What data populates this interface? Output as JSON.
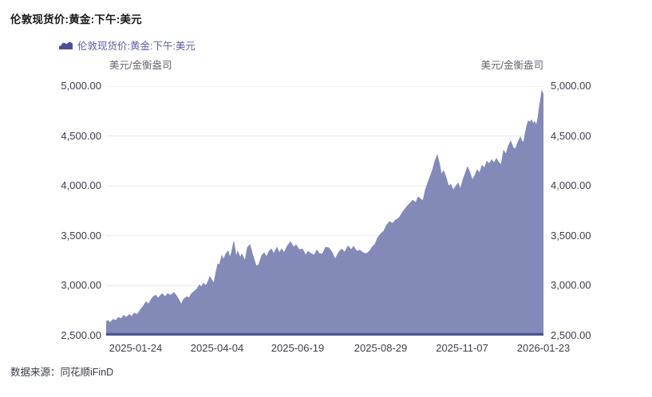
{
  "title": "伦敦现货价:黄金:下午:美元",
  "legend": {
    "label": "伦敦现货价:黄金:下午:美元"
  },
  "unit_left": "美元/金衡盎司",
  "unit_right": "美元/金衡盎司",
  "footer": {
    "source_label": "数据来源：同花顺iFinD"
  },
  "colors": {
    "area_fill": "#838ab8",
    "baseline": "#4d5591",
    "grid": "#e7e7ef",
    "legend_swatch": "#4a4f92",
    "legend_text": "#5b60a6",
    "tick_text": "#3d3d4d",
    "unit_text": "#66666f",
    "title_text": "#1a1a1a",
    "footer_text": "#383849"
  },
  "chart_data": {
    "type": "area",
    "title": "伦敦现货价:黄金:下午:美元",
    "ylabel": "美元/金衡盎司",
    "ylim": [
      2500,
      5000
    ],
    "grid": "horizontal",
    "legend_position": "top-left",
    "yticks": [
      {
        "value": 5000,
        "label": "5,000.00"
      },
      {
        "value": 4500,
        "label": "4,500.00"
      },
      {
        "value": 4000,
        "label": "4,000.00"
      },
      {
        "value": 3500,
        "label": "3,500.00"
      },
      {
        "value": 3000,
        "label": "3,000.00"
      },
      {
        "value": 2500,
        "label": "2,500.00"
      }
    ],
    "t_max": 548,
    "xticks": [
      {
        "t": 37,
        "label": "2025-01-24"
      },
      {
        "t": 139,
        "label": "2025-04-04"
      },
      {
        "t": 240,
        "label": "2025-06-19"
      },
      {
        "t": 344,
        "label": "2025-08-29"
      },
      {
        "t": 446,
        "label": "2025-11-07"
      },
      {
        "t": 548,
        "label": "2026-01-23"
      }
    ],
    "points": [
      [
        0,
        2640
      ],
      [
        2,
        2652
      ],
      [
        5,
        2630
      ],
      [
        9,
        2664
      ],
      [
        12,
        2650
      ],
      [
        15,
        2682
      ],
      [
        19,
        2670
      ],
      [
        22,
        2704
      ],
      [
        25,
        2682
      ],
      [
        29,
        2712
      ],
      [
        32,
        2690
      ],
      [
        35,
        2726
      ],
      [
        39,
        2712
      ],
      [
        42,
        2748
      ],
      [
        45,
        2780
      ],
      [
        47,
        2800
      ],
      [
        50,
        2840
      ],
      [
        53,
        2814
      ],
      [
        56,
        2858
      ],
      [
        59,
        2890
      ],
      [
        62,
        2905
      ],
      [
        65,
        2876
      ],
      [
        68,
        2902
      ],
      [
        70,
        2920
      ],
      [
        74,
        2890
      ],
      [
        77,
        2920
      ],
      [
        81,
        2904
      ],
      [
        85,
        2932
      ],
      [
        89,
        2888
      ],
      [
        92,
        2848
      ],
      [
        94,
        2812
      ],
      [
        97,
        2864
      ],
      [
        101,
        2890
      ],
      [
        104,
        2878
      ],
      [
        107,
        2920
      ],
      [
        111,
        2948
      ],
      [
        114,
        2970
      ],
      [
        117,
        3010
      ],
      [
        119,
        2985
      ],
      [
        122,
        3025
      ],
      [
        125,
        3000
      ],
      [
        128,
        3048
      ],
      [
        130,
        3090
      ],
      [
        132,
        3062
      ],
      [
        135,
        3025
      ],
      [
        138,
        3150
      ],
      [
        140,
        3220
      ],
      [
        142,
        3208
      ],
      [
        145,
        3300
      ],
      [
        147,
        3262
      ],
      [
        150,
        3320
      ],
      [
        153,
        3348
      ],
      [
        155,
        3282
      ],
      [
        157,
        3330
      ],
      [
        160,
        3445
      ],
      [
        163,
        3292
      ],
      [
        165,
        3344
      ],
      [
        168,
        3282
      ],
      [
        170,
        3318
      ],
      [
        174,
        3250
      ],
      [
        177,
        3382
      ],
      [
        180,
        3412
      ],
      [
        184,
        3302
      ],
      [
        188,
        3200
      ],
      [
        191,
        3208
      ],
      [
        195,
        3302
      ],
      [
        198,
        3330
      ],
      [
        201,
        3290
      ],
      [
        204,
        3344
      ],
      [
        207,
        3368
      ],
      [
        210,
        3320
      ],
      [
        214,
        3384
      ],
      [
        217,
        3330
      ],
      [
        220,
        3368
      ],
      [
        223,
        3330
      ],
      [
        227,
        3398
      ],
      [
        231,
        3440
      ],
      [
        235,
        3386
      ],
      [
        238,
        3408
      ],
      [
        242,
        3360
      ],
      [
        246,
        3368
      ],
      [
        250,
        3305
      ],
      [
        253,
        3344
      ],
      [
        257,
        3320
      ],
      [
        261,
        3306
      ],
      [
        264,
        3358
      ],
      [
        267,
        3322
      ],
      [
        271,
        3318
      ],
      [
        275,
        3384
      ],
      [
        279,
        3380
      ],
      [
        283,
        3336
      ],
      [
        287,
        3266
      ],
      [
        291,
        3330
      ],
      [
        295,
        3368
      ],
      [
        299,
        3336
      ],
      [
        303,
        3398
      ],
      [
        307,
        3360
      ],
      [
        310,
        3394
      ],
      [
        314,
        3346
      ],
      [
        318,
        3356
      ],
      [
        322,
        3330
      ],
      [
        326,
        3320
      ],
      [
        330,
        3346
      ],
      [
        333,
        3384
      ],
      [
        337,
        3416
      ],
      [
        340,
        3478
      ],
      [
        344,
        3520
      ],
      [
        348,
        3548
      ],
      [
        351,
        3600
      ],
      [
        355,
        3642
      ],
      [
        359,
        3626
      ],
      [
        363,
        3660
      ],
      [
        367,
        3680
      ],
      [
        372,
        3742
      ],
      [
        376,
        3786
      ],
      [
        380,
        3820
      ],
      [
        384,
        3856
      ],
      [
        388,
        3832
      ],
      [
        391,
        3890
      ],
      [
        394,
        3868
      ],
      [
        397,
        3852
      ],
      [
        400,
        3958
      ],
      [
        403,
        4030
      ],
      [
        406,
        4095
      ],
      [
        409,
        4160
      ],
      [
        412,
        4250
      ],
      [
        415,
        4310
      ],
      [
        418,
        4210
      ],
      [
        420,
        4120
      ],
      [
        423,
        4150
      ],
      [
        426,
        4085
      ],
      [
        429,
        4000
      ],
      [
        432,
        4015
      ],
      [
        435,
        3956
      ],
      [
        438,
        3996
      ],
      [
        441,
        4028
      ],
      [
        444,
        3968
      ],
      [
        447,
        4060
      ],
      [
        450,
        4125
      ],
      [
        453,
        4190
      ],
      [
        456,
        4128
      ],
      [
        459,
        4060
      ],
      [
        462,
        4105
      ],
      [
        465,
        4160
      ],
      [
        468,
        4130
      ],
      [
        471,
        4205
      ],
      [
        474,
        4180
      ],
      [
        477,
        4245
      ],
      [
        480,
        4222
      ],
      [
        483,
        4262
      ],
      [
        486,
        4230
      ],
      [
        489,
        4275
      ],
      [
        492,
        4235
      ],
      [
        495,
        4212
      ],
      [
        498,
        4355
      ],
      [
        501,
        4320
      ],
      [
        504,
        4400
      ],
      [
        507,
        4450
      ],
      [
        510,
        4382
      ],
      [
        513,
        4372
      ],
      [
        516,
        4440
      ],
      [
        519,
        4490
      ],
      [
        521,
        4450
      ],
      [
        523,
        4435
      ],
      [
        525,
        4520
      ],
      [
        527,
        4600
      ],
      [
        529,
        4650
      ],
      [
        531,
        4640
      ],
      [
        533,
        4660
      ],
      [
        535,
        4625
      ],
      [
        537,
        4645
      ],
      [
        539,
        4605
      ],
      [
        541,
        4680
      ],
      [
        543,
        4800
      ],
      [
        545,
        4900
      ],
      [
        546,
        4955
      ],
      [
        547,
        4920
      ],
      [
        548,
        4930
      ]
    ]
  }
}
